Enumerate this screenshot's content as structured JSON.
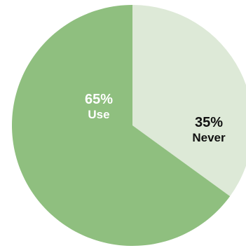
{
  "chart_data": {
    "type": "pie",
    "slices": [
      {
        "label": "Use",
        "value": 65,
        "pct_label": "65%",
        "color": "#8fbf7f",
        "text_color": "#ffffff"
      },
      {
        "label": "Never",
        "value": 35,
        "pct_label": "35%",
        "color": "#dde9d7",
        "text_color": "#111111"
      }
    ],
    "start_angle_deg": 0,
    "direction": "counterclockwise",
    "background": "#ffffff"
  }
}
